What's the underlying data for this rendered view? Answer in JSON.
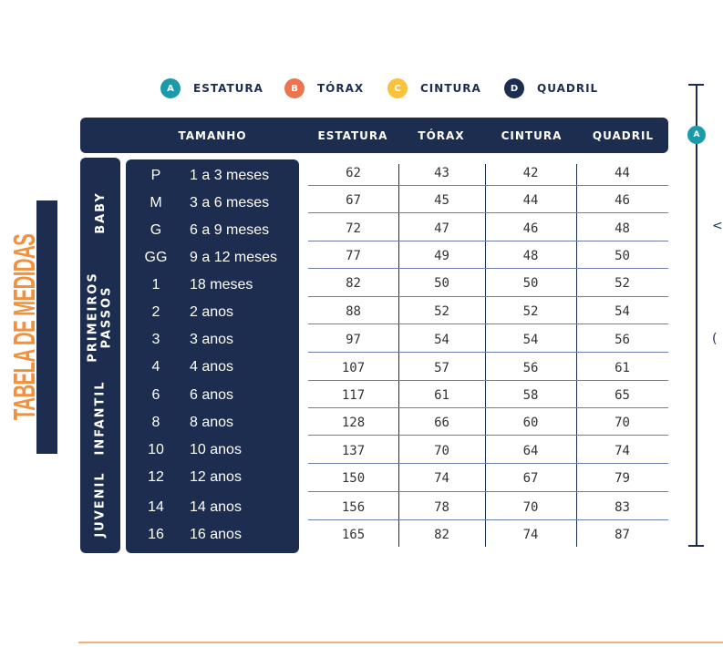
{
  "title": "TABELA DE MEDIDAS",
  "legend": [
    {
      "letter": "A",
      "label": "ESTATURA",
      "color": "#1b9aaa"
    },
    {
      "letter": "B",
      "label": "TÓRAX",
      "color": "#ee7450"
    },
    {
      "letter": "C",
      "label": "CINTURA",
      "color": "#f9c23c"
    },
    {
      "letter": "D",
      "label": "QUADRIL",
      "color": "#1d2d4f"
    }
  ],
  "header": {
    "tamanho": "TAMANHO",
    "estatura": "ESTATURA",
    "torax": "TÓRAX",
    "cintura": "CINTURA",
    "quadril": "QUADRIL"
  },
  "groups": {
    "baby": "BABY",
    "primeiros_1": "PRIMEIROS",
    "primeiros_2": "PASSOS",
    "infantil": "INFANTIL",
    "juvenil": "JUVENIL"
  },
  "rows": [
    {
      "code": "P",
      "label": "1 a 3 meses",
      "estatura": "62",
      "torax": "43",
      "cintura": "42",
      "quadril": "44"
    },
    {
      "code": "M",
      "label": "3 a 6 meses",
      "estatura": "67",
      "torax": "45",
      "cintura": "44",
      "quadril": "46"
    },
    {
      "code": "G",
      "label": "6 a 9 meses",
      "estatura": "72",
      "torax": "47",
      "cintura": "46",
      "quadril": "48"
    },
    {
      "code": "GG",
      "label": "9 a 12 meses",
      "estatura": "77",
      "torax": "49",
      "cintura": "48",
      "quadril": "50"
    },
    {
      "code": "1",
      "label": "18 meses",
      "estatura": "82",
      "torax": "50",
      "cintura": "50",
      "quadril": "52"
    },
    {
      "code": "2",
      "label": "2 anos",
      "estatura": "88",
      "torax": "52",
      "cintura": "52",
      "quadril": "54"
    },
    {
      "code": "3",
      "label": "3 anos",
      "estatura": "97",
      "torax": "54",
      "cintura": "54",
      "quadril": "56"
    },
    {
      "code": "4",
      "label": "4 anos",
      "estatura": "107",
      "torax": "57",
      "cintura": "56",
      "quadril": "61"
    },
    {
      "code": "6",
      "label": "6 anos",
      "estatura": "117",
      "torax": "61",
      "cintura": "58",
      "quadril": "65"
    },
    {
      "code": "8",
      "label": "8 anos",
      "estatura": "128",
      "torax": "66",
      "cintura": "60",
      "quadril": "70"
    },
    {
      "code": "10",
      "label": "10 anos",
      "estatura": "137",
      "torax": "70",
      "cintura": "64",
      "quadril": "74"
    },
    {
      "code": "12",
      "label": "12 anos",
      "estatura": "150",
      "torax": "74",
      "cintura": "67",
      "quadril": "79"
    },
    {
      "code": "14",
      "label": "14 anos",
      "estatura": "156",
      "torax": "78",
      "cintura": "70",
      "quadril": "83"
    },
    {
      "code": "16",
      "label": "16 anos",
      "estatura": "165",
      "torax": "82",
      "cintura": "74",
      "quadril": "87"
    }
  ],
  "dimension_badge": "A"
}
